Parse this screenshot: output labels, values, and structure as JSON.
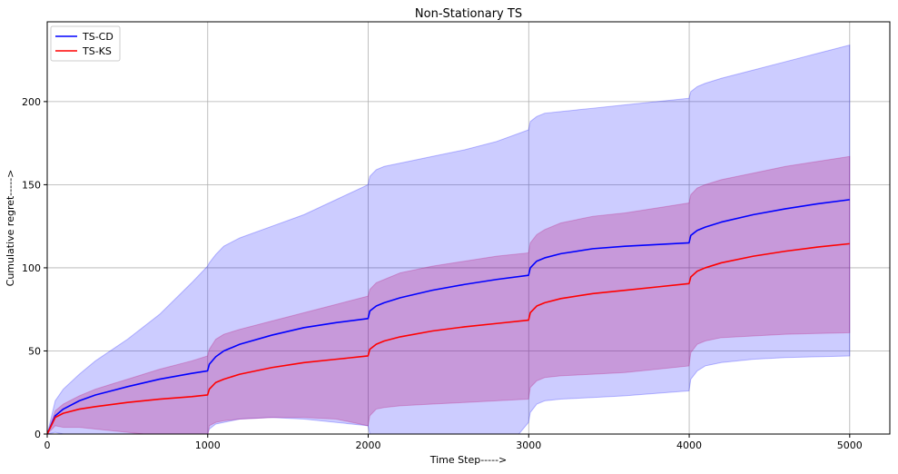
{
  "chart_data": {
    "type": "line",
    "title": "Non-Stationary TS",
    "xlabel": "Time Step----->",
    "ylabel": "Cumulative regret----->",
    "xlim": [
      0,
      5250
    ],
    "ylim": [
      0,
      248
    ],
    "xticks": [
      0,
      1000,
      2000,
      3000,
      4000,
      5000
    ],
    "yticks": [
      0,
      50,
      100,
      150,
      200
    ],
    "grid": true,
    "legend_position": "top-left",
    "series": [
      {
        "name": "TS-CD",
        "color": "#0000ff",
        "band_color": "#0000ff",
        "band_opacity": 0.2,
        "x": [
          0,
          50,
          100,
          200,
          300,
          500,
          700,
          900,
          999,
          1010,
          1050,
          1100,
          1200,
          1400,
          1600,
          1800,
          1999,
          2010,
          2050,
          2100,
          2200,
          2400,
          2600,
          2800,
          2999,
          3010,
          3050,
          3100,
          3200,
          3400,
          3600,
          3800,
          3999,
          4010,
          4050,
          4100,
          4200,
          4400,
          4600,
          4800,
          5000
        ],
        "y": [
          0,
          11,
          15,
          20,
          23.5,
          28.5,
          33,
          36.5,
          38,
          42,
          46.5,
          50,
          54,
          59.5,
          64,
          67,
          69.5,
          74,
          77,
          79,
          82,
          86.5,
          90,
          93,
          95.5,
          100,
          104,
          106,
          108.5,
          111.5,
          113,
          114,
          115,
          119.5,
          122.5,
          124.5,
          127.5,
          132,
          135.5,
          138.5,
          141
        ],
        "upper": [
          0,
          20,
          27,
          36,
          44,
          57,
          72,
          91,
          101,
          103,
          108,
          113,
          118,
          125,
          132,
          141,
          150,
          155,
          159,
          161,
          163,
          167,
          171,
          176,
          183,
          188,
          191,
          193,
          194,
          196,
          198,
          200,
          202,
          206,
          209,
          211,
          214,
          219,
          224,
          229,
          234
        ],
        "lower": [
          0,
          1,
          0,
          -3,
          -6,
          -9,
          -12,
          -16,
          0,
          3,
          6,
          7,
          9,
          10,
          9,
          7,
          5,
          0,
          -5,
          -8,
          -10,
          -12,
          -14,
          -16,
          7,
          13,
          18,
          20,
          21,
          22,
          23,
          24.5,
          26,
          33,
          38,
          41,
          43,
          45,
          46,
          46.5,
          47
        ]
      },
      {
        "name": "TS-KS",
        "color": "#ff0000",
        "band_color": "#b6006d",
        "band_opacity": 0.25,
        "x": [
          0,
          50,
          100,
          200,
          300,
          500,
          700,
          900,
          999,
          1010,
          1050,
          1100,
          1200,
          1400,
          1600,
          1800,
          1999,
          2010,
          2050,
          2100,
          2200,
          2400,
          2600,
          2800,
          2999,
          3010,
          3050,
          3100,
          3200,
          3400,
          3600,
          3800,
          3999,
          4010,
          4050,
          4100,
          4200,
          4400,
          4600,
          4800,
          5000
        ],
        "y": [
          0,
          10,
          12.5,
          15,
          16.5,
          19,
          21,
          22.5,
          23.5,
          27,
          31,
          33,
          36,
          40,
          43,
          45,
          47,
          51,
          54,
          56,
          58.5,
          62,
          64.5,
          66.5,
          68.5,
          73,
          77,
          79,
          81.5,
          84.5,
          86.5,
          88.5,
          90.5,
          94.5,
          98,
          100,
          103,
          107,
          110,
          112.5,
          114.5
        ],
        "upper": [
          0,
          14,
          18,
          23,
          27,
          33,
          39,
          44,
          47,
          51,
          57,
          60,
          63,
          68,
          73,
          78,
          83,
          87,
          91,
          93,
          97,
          101,
          104,
          107,
          109,
          115,
          120,
          123,
          127,
          131,
          133,
          136,
          139,
          144,
          148,
          150,
          153,
          157,
          161,
          164,
          167
        ],
        "lower": [
          0,
          5,
          4,
          4,
          3,
          1,
          -1,
          -2,
          -2,
          5,
          7,
          8,
          9,
          10,
          10,
          9,
          5,
          11,
          15,
          16,
          17,
          18,
          19,
          20,
          21,
          28,
          32,
          34,
          35,
          36,
          37,
          39,
          41,
          49,
          54,
          56,
          58,
          59,
          60,
          60.5,
          61
        ]
      }
    ]
  }
}
